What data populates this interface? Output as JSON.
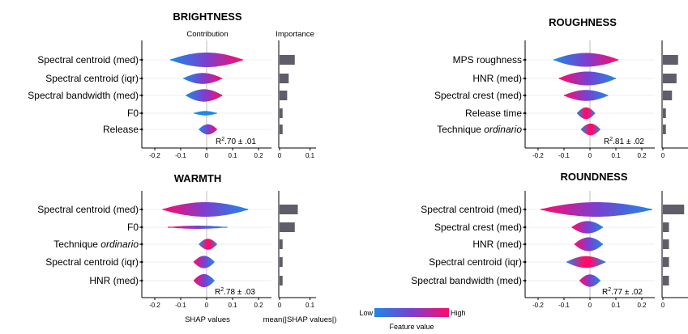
{
  "colors": {
    "low": "#1e88e5",
    "mid": "#7b3fd0",
    "high": "#ff0a6c",
    "importance_bar": "#5e5e6a",
    "axis": "#000000",
    "zero_line": "#bdbdbd"
  },
  "common": {
    "contribution_header": "Contribution",
    "importance_header": "Importance",
    "shap_axis_label": "SHAP values",
    "importance_axis_label": "mean(|SHAP values|)",
    "colorbar": {
      "low": "Low",
      "high": "High",
      "label": "Feature value"
    }
  },
  "chart_data": [
    {
      "type": "violin",
      "title": "BRIGHTNESS",
      "r2_text": ".70 ± .01",
      "xlim": [
        -0.25,
        0.25
      ],
      "features": [
        {
          "label": "Spectral centroid (med)",
          "range": [
            -0.14,
            0.14
          ],
          "width": 1.0,
          "importance": 0.05
        },
        {
          "label": "Spectral centroid (iqr)",
          "range": [
            -0.09,
            0.06
          ],
          "width": 0.75,
          "importance": 0.03
        },
        {
          "label": "Spectral bandwidth (med)",
          "range": [
            -0.08,
            0.06
          ],
          "width": 0.85,
          "importance": 0.025
        },
        {
          "label": "F0",
          "range": [
            -0.05,
            0.04
          ],
          "width": 0.3,
          "importance": 0.01
        },
        {
          "label": "Release",
          "range": [
            -0.03,
            0.04
          ],
          "width": 0.7,
          "importance": 0.01
        }
      ]
    },
    {
      "type": "violin",
      "title": "ROUGHNESS",
      "r2_text": ".81 ± .02",
      "xlim": [
        -0.25,
        0.25
      ],
      "features": [
        {
          "label": "MPS roughness",
          "range": [
            -0.14,
            0.11
          ],
          "width": 0.95,
          "importance": 0.05
        },
        {
          "label": "HNR (med)",
          "range": [
            -0.12,
            0.1
          ],
          "width": 0.95,
          "importance": 0.045
        },
        {
          "label": "Spectral crest (med)",
          "range": [
            -0.1,
            0.07
          ],
          "width": 0.75,
          "importance": 0.03
        },
        {
          "label": "Release time",
          "range": [
            -0.05,
            0.02
          ],
          "width": 0.8,
          "importance": 0.01
        },
        {
          "label": "Technique ordinario",
          "range": [
            -0.035,
            0.04
          ],
          "width": 0.8,
          "importance": 0.01
        }
      ]
    },
    {
      "type": "violin",
      "title": "WARMTH",
      "r2_text": ".78 ± .03",
      "xlim": [
        -0.25,
        0.25
      ],
      "features": [
        {
          "label": "Spectral centroid (med)",
          "range": [
            -0.17,
            0.16
          ],
          "width": 1.0,
          "importance": 0.06
        },
        {
          "label": "F0",
          "range": [
            -0.15,
            0.08
          ],
          "width": 0.22,
          "importance": 0.05
        },
        {
          "label": "Technique ordinario",
          "range": [
            -0.03,
            0.04
          ],
          "width": 0.75,
          "importance": 0.01
        },
        {
          "label": "Spectral centroid (iqr)",
          "range": [
            -0.05,
            0.03
          ],
          "width": 0.85,
          "importance": 0.01
        },
        {
          "label": "HNR (med)",
          "range": [
            -0.05,
            0.03
          ],
          "width": 0.9,
          "importance": 0.01
        }
      ]
    },
    {
      "type": "violin",
      "title": "ROUNDNESS",
      "r2_text": ".77 ± .02",
      "xlim": [
        -0.25,
        0.25
      ],
      "features": [
        {
          "label": "Spectral centroid (med)",
          "range": [
            -0.19,
            0.24
          ],
          "width": 1.0,
          "importance": 0.07
        },
        {
          "label": "Spectral crest (med)",
          "range": [
            -0.07,
            0.05
          ],
          "width": 0.85,
          "importance": 0.02
        },
        {
          "label": "HNR (med)",
          "range": [
            -0.06,
            0.05
          ],
          "width": 0.95,
          "importance": 0.02
        },
        {
          "label": "Spectral centroid (iqr)",
          "range": [
            -0.09,
            0.06
          ],
          "width": 0.8,
          "importance": 0.02
        },
        {
          "label": "Spectral bandwidth (med)",
          "range": [
            -0.04,
            0.04
          ],
          "width": 0.85,
          "importance": 0.02
        }
      ]
    }
  ],
  "shap_ticks": [
    "-0.2",
    "-0.1",
    "0",
    "0.1",
    "0.2"
  ],
  "shap_tick_values": [
    -0.2,
    -0.1,
    0,
    0.1,
    0.2
  ],
  "importance_ticks": [
    "0",
    "0.1"
  ],
  "importance_tick_values": [
    0,
    0.1
  ]
}
